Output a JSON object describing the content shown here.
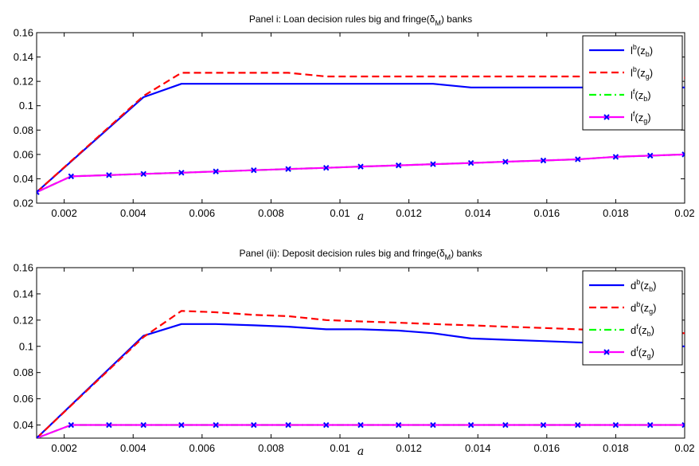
{
  "chart_data": [
    {
      "type": "line",
      "title": "Panel i: Loan decision rules big and fringe(δ",
      "title_sub": "M",
      "title_tail": ") banks",
      "xlabel": "a",
      "ylabel": "",
      "xlim": [
        0.0012,
        0.02
      ],
      "ylim": [
        0.02,
        0.16
      ],
      "xticks": [
        0.002,
        0.004,
        0.006,
        0.008,
        0.01,
        0.012,
        0.014,
        0.016,
        0.018,
        0.02
      ],
      "xtick_labels": [
        "0.002",
        "0.004",
        "0.006",
        "0.008",
        "0.01",
        "0.012",
        "0.014",
        "0.016",
        "0.018",
        "0.02"
      ],
      "yticks": [
        0.02,
        0.04,
        0.06,
        0.08,
        0.1,
        0.12,
        0.14,
        0.16
      ],
      "ytick_labels": [
        "0.02",
        "0.04",
        "0.06",
        "0.08",
        "0.1",
        "0.12",
        "0.14",
        "0.16"
      ],
      "grid": false,
      "legend_position": "top-right",
      "series": [
        {
          "base": "l",
          "sup": "b",
          "sub": "b",
          "color": "#0000ff",
          "style": "solid",
          "marker": "none",
          "x": [
            0.0012,
            0.0043,
            0.0054,
            0.0064,
            0.0075,
            0.0085,
            0.0096,
            0.0106,
            0.0117,
            0.0127,
            0.0138,
            0.0148,
            0.0159,
            0.0169,
            0.018,
            0.019,
            0.02
          ],
          "y": [
            0.029,
            0.107,
            0.118,
            0.118,
            0.118,
            0.118,
            0.118,
            0.118,
            0.118,
            0.118,
            0.115,
            0.115,
            0.115,
            0.115,
            0.115,
            0.115,
            0.115
          ]
        },
        {
          "base": "l",
          "sup": "b",
          "sub": "g",
          "color": "#ff0000",
          "style": "dashed",
          "marker": "none",
          "x": [
            0.0012,
            0.0043,
            0.0054,
            0.0064,
            0.0075,
            0.0085,
            0.0096,
            0.0106,
            0.0117,
            0.0127,
            0.0138,
            0.0148,
            0.0159,
            0.0169,
            0.018,
            0.019,
            0.02
          ],
          "y": [
            0.029,
            0.108,
            0.127,
            0.127,
            0.127,
            0.127,
            0.124,
            0.124,
            0.124,
            0.124,
            0.124,
            0.124,
            0.124,
            0.124,
            0.123,
            0.123,
            0.123
          ]
        },
        {
          "base": "l",
          "sup": "f",
          "sub": "b",
          "color": "#00ff00",
          "style": "dashdot",
          "marker": "none",
          "x": [
            0.0012,
            0.0022,
            0.0033,
            0.0043,
            0.0054,
            0.0064,
            0.0075,
            0.0085,
            0.0096,
            0.0106,
            0.0117,
            0.0127,
            0.0138,
            0.0148,
            0.0159,
            0.0169,
            0.018,
            0.019,
            0.02
          ],
          "y": [
            0.029,
            0.042,
            0.043,
            0.044,
            0.045,
            0.046,
            0.047,
            0.048,
            0.049,
            0.05,
            0.051,
            0.052,
            0.053,
            0.054,
            0.055,
            0.056,
            0.058,
            0.059,
            0.06
          ]
        },
        {
          "base": "l",
          "sup": "f",
          "sub": "g",
          "color": "#ff00ff",
          "style": "solid",
          "marker": "x",
          "x": [
            0.0012,
            0.0022,
            0.0033,
            0.0043,
            0.0054,
            0.0064,
            0.0075,
            0.0085,
            0.0096,
            0.0106,
            0.0117,
            0.0127,
            0.0138,
            0.0148,
            0.0159,
            0.0169,
            0.018,
            0.019,
            0.02
          ],
          "y": [
            0.029,
            0.042,
            0.043,
            0.044,
            0.045,
            0.046,
            0.047,
            0.048,
            0.049,
            0.05,
            0.051,
            0.052,
            0.053,
            0.054,
            0.055,
            0.056,
            0.058,
            0.059,
            0.06
          ]
        }
      ]
    },
    {
      "type": "line",
      "title": "Panel (ii): Deposit decision rules big and fringe(δ",
      "title_sub": "M",
      "title_tail": ") banks",
      "xlabel": "a",
      "ylabel": "",
      "xlim": [
        0.0012,
        0.02
      ],
      "ylim": [
        0.03,
        0.16
      ],
      "xticks": [
        0.002,
        0.004,
        0.006,
        0.008,
        0.01,
        0.012,
        0.014,
        0.016,
        0.018,
        0.02
      ],
      "xtick_labels": [
        "0.002",
        "0.004",
        "0.006",
        "0.008",
        "0.01",
        "0.012",
        "0.014",
        "0.016",
        "0.018",
        "0.02"
      ],
      "yticks": [
        0.04,
        0.06,
        0.08,
        0.1,
        0.12,
        0.14,
        0.16
      ],
      "ytick_labels": [
        "0.04",
        "0.06",
        "0.08",
        "0.1",
        "0.12",
        "0.14",
        "0.16"
      ],
      "grid": false,
      "legend_position": "top-right",
      "series": [
        {
          "base": "d",
          "sup": "b",
          "sub": "b",
          "color": "#0000ff",
          "style": "solid",
          "marker": "none",
          "x": [
            0.0012,
            0.0043,
            0.0054,
            0.0064,
            0.0075,
            0.0085,
            0.0096,
            0.0106,
            0.0117,
            0.0127,
            0.0138,
            0.0148,
            0.0159,
            0.0169,
            0.018,
            0.019,
            0.02
          ],
          "y": [
            0.03,
            0.108,
            0.117,
            0.117,
            0.116,
            0.115,
            0.113,
            0.113,
            0.112,
            0.11,
            0.106,
            0.105,
            0.104,
            0.103,
            0.102,
            0.1,
            0.1
          ]
        },
        {
          "base": "d",
          "sup": "b",
          "sub": "g",
          "color": "#ff0000",
          "style": "dashed",
          "marker": "none",
          "x": [
            0.0012,
            0.0043,
            0.0054,
            0.0064,
            0.0075,
            0.0085,
            0.0096,
            0.0106,
            0.0117,
            0.0127,
            0.0138,
            0.0148,
            0.0159,
            0.0169,
            0.018,
            0.019,
            0.02
          ],
          "y": [
            0.03,
            0.107,
            0.127,
            0.126,
            0.124,
            0.123,
            0.12,
            0.119,
            0.118,
            0.117,
            0.116,
            0.115,
            0.114,
            0.113,
            0.112,
            0.111,
            0.11
          ]
        },
        {
          "base": "d",
          "sup": "f",
          "sub": "b",
          "color": "#00ff00",
          "style": "dashdot",
          "marker": "none",
          "x": [
            0.0012,
            0.0022,
            0.0033,
            0.0043,
            0.0054,
            0.0064,
            0.0075,
            0.0085,
            0.0096,
            0.0106,
            0.0117,
            0.0127,
            0.0138,
            0.0148,
            0.0159,
            0.0169,
            0.018,
            0.019,
            0.02
          ],
          "y": [
            0.03,
            0.04,
            0.04,
            0.04,
            0.04,
            0.04,
            0.04,
            0.04,
            0.04,
            0.04,
            0.04,
            0.04,
            0.04,
            0.04,
            0.04,
            0.04,
            0.04,
            0.04,
            0.04
          ]
        },
        {
          "base": "d",
          "sup": "f",
          "sub": "g",
          "color": "#ff00ff",
          "style": "solid",
          "marker": "x",
          "x": [
            0.0012,
            0.0022,
            0.0033,
            0.0043,
            0.0054,
            0.0064,
            0.0075,
            0.0085,
            0.0096,
            0.0106,
            0.0117,
            0.0127,
            0.0138,
            0.0148,
            0.0159,
            0.0169,
            0.018,
            0.019,
            0.02
          ],
          "y": [
            0.03,
            0.04,
            0.04,
            0.04,
            0.04,
            0.04,
            0.04,
            0.04,
            0.04,
            0.04,
            0.04,
            0.04,
            0.04,
            0.04,
            0.04,
            0.04,
            0.04,
            0.04,
            0.04
          ]
        }
      ]
    }
  ]
}
